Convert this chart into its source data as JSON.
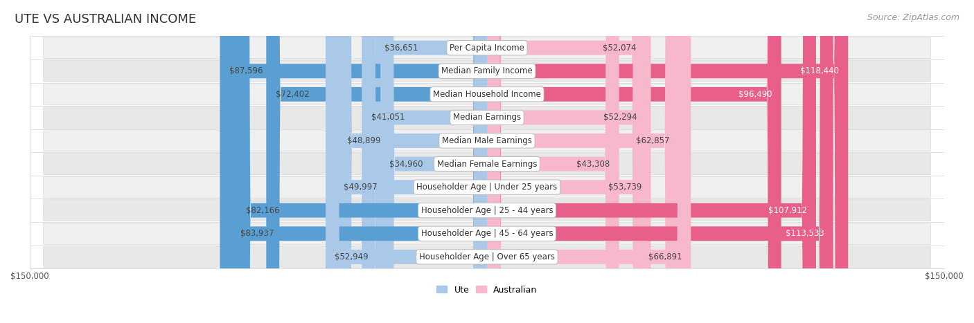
{
  "title": "UTE VS AUSTRALIAN INCOME",
  "source": "Source: ZipAtlas.com",
  "categories": [
    "Per Capita Income",
    "Median Family Income",
    "Median Household Income",
    "Median Earnings",
    "Median Male Earnings",
    "Median Female Earnings",
    "Householder Age | Under 25 years",
    "Householder Age | 25 - 44 years",
    "Householder Age | 45 - 64 years",
    "Householder Age | Over 65 years"
  ],
  "ute_values": [
    36651,
    87596,
    72402,
    41051,
    48899,
    34960,
    49997,
    82166,
    83937,
    52949
  ],
  "aus_values": [
    52074,
    118440,
    96490,
    52294,
    62857,
    43308,
    53739,
    107912,
    113533,
    66891
  ],
  "ute_labels": [
    "$36,651",
    "$87,596",
    "$72,402",
    "$41,051",
    "$48,899",
    "$34,960",
    "$49,997",
    "$82,166",
    "$83,937",
    "$52,949"
  ],
  "aus_labels": [
    "$52,074",
    "$118,440",
    "$96,490",
    "$52,294",
    "$62,857",
    "$43,308",
    "$53,739",
    "$107,912",
    "$113,533",
    "$66,891"
  ],
  "ute_color_light": "#aac8e8",
  "ute_color_dark": "#5a9fd4",
  "aus_color_light": "#f7b8cb",
  "aus_color_dark": "#e8608a",
  "row_bg_odd": "#f5f5f5",
  "row_bg_even": "#ebebeb",
  "max_value": 150000,
  "title_fontsize": 13,
  "source_fontsize": 9,
  "bar_label_fontsize": 8.5,
  "category_fontsize": 8.5,
  "axis_label_fontsize": 8.5,
  "ute_threshold": 70000,
  "aus_threshold": 90000
}
